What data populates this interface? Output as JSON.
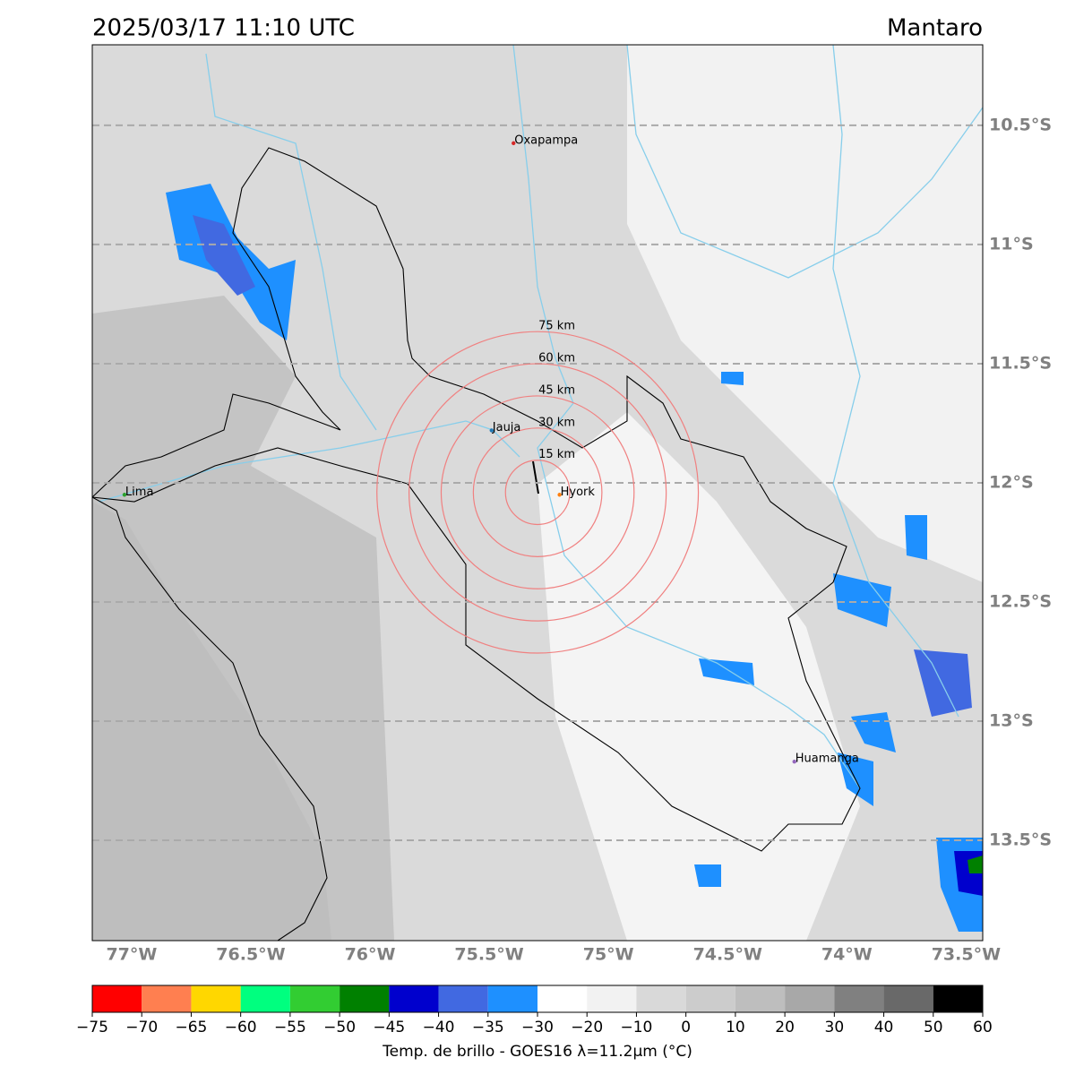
{
  "title": "2025/03/17 11:10 UTC",
  "region": "Mantaro",
  "map": {
    "lonlim": [
      -77.165,
      -73.43
    ],
    "latlim": [
      -10.162,
      -13.921
    ],
    "lat_ticks": [
      {
        "value": -10.5,
        "label": "10.5°S"
      },
      {
        "value": -11,
        "label": "11°S"
      },
      {
        "value": -11.5,
        "label": "11.5°S"
      },
      {
        "value": -12,
        "label": "12°S"
      },
      {
        "value": -12.5,
        "label": "12.5°S"
      },
      {
        "value": -13,
        "label": "13°S"
      },
      {
        "value": -13.5,
        "label": "13.5°S"
      }
    ],
    "lon_ticks": [
      {
        "value": -77,
        "label": "77°W"
      },
      {
        "value": -76.5,
        "label": "76.5°W"
      },
      {
        "value": -76,
        "label": "76°W"
      },
      {
        "value": -75.5,
        "label": "75.5°W"
      },
      {
        "value": -75,
        "label": "75°W"
      },
      {
        "value": -74.5,
        "label": "74.5°W"
      },
      {
        "value": -74,
        "label": "74°W"
      },
      {
        "value": -73.5,
        "label": "73.5°W"
      }
    ],
    "cities": [
      {
        "name": "Oxapampa",
        "lon": -75.398,
        "lat": -10.575,
        "color": "#d62728"
      },
      {
        "name": "Jauja",
        "lon": -75.49,
        "lat": -11.78,
        "color": "#1f77b4"
      },
      {
        "name": "Hyork",
        "lon": -75.205,
        "lat": -12.05,
        "color": "#ff7f0e"
      },
      {
        "name": "Lima",
        "lon": -77.03,
        "lat": -12.05,
        "color": "#2ca02c"
      },
      {
        "name": "Huamanga",
        "lon": -74.22,
        "lat": -13.17,
        "color": "#9467bd"
      }
    ],
    "rings": {
      "center_lon": -75.297,
      "center_lat": -12.04,
      "color": "#f08080",
      "radii": [
        {
          "value": 15,
          "label": "15 km"
        },
        {
          "value": 30,
          "label": "30 km"
        },
        {
          "value": 45,
          "label": "45 km"
        },
        {
          "value": 60,
          "label": "60 km"
        },
        {
          "value": 75,
          "label": "75 km"
        }
      ]
    }
  },
  "colorbar": {
    "label": "Temp. de brillo - GOES16 λ=11.2μm (°C)",
    "ticks": [
      {
        "value": -75,
        "label": "−75"
      },
      {
        "value": -70,
        "label": "−70"
      },
      {
        "value": -65,
        "label": "−65"
      },
      {
        "value": -60,
        "label": "−60"
      },
      {
        "value": -55,
        "label": "−55"
      },
      {
        "value": -50,
        "label": "−50"
      },
      {
        "value": -45,
        "label": "−45"
      },
      {
        "value": -40,
        "label": "−40"
      },
      {
        "value": -35,
        "label": "−35"
      },
      {
        "value": -30,
        "label": "−30"
      },
      {
        "value": -20,
        "label": "−20"
      },
      {
        "value": -10,
        "label": "−10"
      },
      0,
      10,
      20,
      30,
      40,
      50,
      60
    ],
    "colors": [
      "#ff0000",
      "#ff7f50",
      "#ffd700",
      "#00ff7f",
      "#32cd32",
      "#008000",
      "#0000cd",
      "#4169e1",
      "#1e90ff",
      "#ffffff",
      "#f2f2f2",
      "#d9d9d9",
      "#cccccc",
      "#bebebe",
      "#a8a8a8",
      "#808080",
      "#696969",
      "#000000"
    ]
  }
}
